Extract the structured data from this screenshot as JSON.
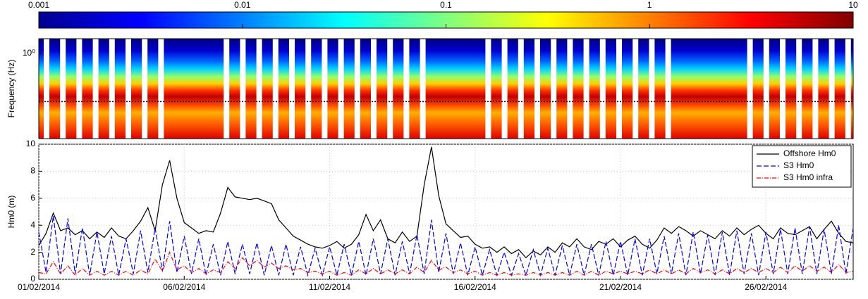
{
  "chart_data": [
    {
      "type": "colorbar",
      "colormap": "jet",
      "log": true,
      "xlim": [
        0.001,
        10
      ],
      "xticks": [
        0.001,
        0.01,
        0.1,
        1,
        10
      ]
    },
    {
      "type": "spectrogram",
      "ylabel": "Frequency (Hz)",
      "log": true,
      "ylim": [
        0.005,
        2.5
      ],
      "yticks": [
        {
          "value": 1,
          "label": "10⁰"
        }
      ],
      "threshold": 0.05,
      "xlim": [
        0,
        28
      ]
    },
    {
      "type": "line",
      "ylabel": "Hm0 (m)",
      "xlim": [
        0,
        28
      ],
      "ylim": [
        0,
        10
      ],
      "grid": true,
      "legend": "upper right",
      "xticks": [
        {
          "value": 0,
          "label": "01/02/2014"
        },
        {
          "value": 5,
          "label": "06/02/2014"
        },
        {
          "value": 10,
          "label": "11/02/2014"
        },
        {
          "value": 15,
          "label": "16/02/2014"
        },
        {
          "value": 20,
          "label": "21/02/2014"
        },
        {
          "value": 25,
          "label": "26/02/2014"
        }
      ],
      "yticks": [
        0,
        2,
        4,
        6,
        8,
        10
      ],
      "x": [
        0,
        0.25,
        0.5,
        0.75,
        1,
        1.25,
        1.5,
        1.75,
        2,
        2.25,
        2.5,
        2.75,
        3,
        3.25,
        3.5,
        3.75,
        4,
        4.25,
        4.5,
        4.75,
        5,
        5.25,
        5.5,
        5.75,
        6,
        6.25,
        6.5,
        6.75,
        7,
        7.25,
        7.5,
        7.75,
        8,
        8.25,
        8.5,
        8.75,
        9,
        9.25,
        9.5,
        9.75,
        10,
        10.25,
        10.5,
        10.75,
        11,
        11.25,
        11.5,
        11.75,
        12,
        12.25,
        12.5,
        12.75,
        13,
        13.25,
        13.5,
        13.75,
        14,
        14.25,
        14.5,
        14.75,
        15,
        15.25,
        15.5,
        15.75,
        16,
        16.25,
        16.5,
        16.75,
        17,
        17.25,
        17.5,
        17.75,
        18,
        18.25,
        18.5,
        18.75,
        19,
        19.25,
        19.5,
        19.75,
        20,
        20.25,
        20.5,
        20.75,
        21,
        21.25,
        21.5,
        21.75,
        22,
        22.25,
        22.5,
        22.75,
        23,
        23.25,
        23.5,
        23.75,
        24,
        24.25,
        24.5,
        24.75,
        25,
        25.25,
        25.5,
        25.75,
        26,
        26.25,
        26.5,
        26.75,
        27,
        27.25,
        27.5,
        27.75,
        28
      ],
      "series": [
        {
          "name": "Offshore Hm0",
          "color": "#000000",
          "linestyle": "solid",
          "values": [
            2.5,
            3.4,
            4.9,
            3.6,
            3.8,
            3.3,
            3.6,
            3.0,
            3.5,
            3.1,
            3.8,
            3.2,
            3.0,
            3.6,
            4.3,
            5.3,
            3.6,
            7.0,
            8.8,
            6.0,
            4.2,
            3.8,
            3.4,
            3.6,
            3.5,
            4.9,
            6.8,
            6.1,
            6.0,
            5.9,
            6.0,
            5.8,
            5.6,
            4.4,
            3.8,
            3.2,
            2.9,
            2.6,
            2.4,
            2.3,
            2.5,
            2.8,
            2.3,
            2.6,
            3.3,
            4.8,
            3.6,
            4.4,
            3.0,
            2.7,
            3.5,
            2.8,
            3.2,
            7.0,
            9.8,
            6.2,
            4.1,
            3.6,
            3.1,
            3.2,
            2.6,
            2.3,
            2.4,
            2.0,
            2.4,
            1.9,
            2.2,
            1.6,
            2.1,
            1.8,
            2.4,
            2.0,
            2.7,
            2.4,
            3.0,
            2.4,
            2.2,
            2.8,
            2.6,
            3.0,
            2.4,
            2.9,
            3.2,
            2.6,
            2.3,
            2.9,
            3.8,
            3.4,
            3.9,
            3.6,
            3.2,
            3.6,
            3.3,
            3.0,
            3.6,
            3.2,
            3.8,
            3.3,
            3.7,
            4.0,
            3.4,
            3.0,
            3.8,
            3.4,
            3.3,
            3.6,
            3.9,
            3.0,
            3.7,
            4.3,
            3.4,
            2.8,
            2.7
          ]
        },
        {
          "name": "S3 Hm0",
          "color": "#0000ff",
          "linestyle": "dashed",
          "values": [
            3.5,
            0.5,
            4.7,
            0.4,
            4.5,
            0.4,
            3.8,
            0.3,
            3.5,
            0.4,
            3.2,
            0.3,
            3.0,
            0.4,
            3.6,
            0.5,
            3.8,
            0.6,
            4.3,
            0.5,
            3.2,
            0.4,
            3.0,
            0.3,
            2.6,
            0.3,
            2.8,
            0.4,
            2.6,
            0.4,
            2.7,
            0.3,
            2.5,
            0.3,
            2.6,
            0.3,
            2.4,
            0.3,
            2.3,
            0.3,
            2.4,
            0.3,
            2.6,
            0.3,
            2.8,
            0.3,
            3.0,
            0.4,
            3.0,
            0.3,
            2.8,
            0.4,
            3.3,
            0.4,
            4.4,
            0.5,
            3.4,
            0.4,
            2.7,
            0.3,
            2.4,
            0.3,
            2.2,
            0.3,
            2.0,
            0.3,
            1.9,
            0.3,
            2.2,
            0.3,
            2.3,
            0.3,
            2.5,
            0.3,
            2.6,
            0.3,
            2.6,
            0.3,
            2.8,
            0.3,
            2.8,
            0.3,
            3.0,
            0.3,
            3.0,
            0.4,
            3.2,
            0.4,
            3.4,
            0.3,
            3.5,
            0.4,
            3.3,
            0.3,
            3.5,
            0.3,
            3.6,
            0.4,
            3.4,
            0.3,
            3.5,
            0.4,
            3.7,
            0.4,
            3.8,
            0.4,
            3.9,
            0.4,
            3.7,
            0.4,
            4.0,
            0.4,
            3.8
          ]
        },
        {
          "name": "S3 Hm0 infra",
          "color": "#ff0000",
          "linestyle": "dashdot",
          "values": [
            0.5,
            0.4,
            1.3,
            0.4,
            1.0,
            0.3,
            0.8,
            0.3,
            0.6,
            0.3,
            0.6,
            0.3,
            0.6,
            0.3,
            0.7,
            0.4,
            1.5,
            0.6,
            2.0,
            0.7,
            1.0,
            0.5,
            0.8,
            0.4,
            0.7,
            0.5,
            1.3,
            0.8,
            1.6,
            1.0,
            1.4,
            0.9,
            1.2,
            0.8,
            1.0,
            0.7,
            0.8,
            0.5,
            0.6,
            0.4,
            0.6,
            0.3,
            0.5,
            0.3,
            0.7,
            0.4,
            0.8,
            0.4,
            0.7,
            0.4,
            0.7,
            0.4,
            0.9,
            0.5,
            1.4,
            0.7,
            0.9,
            0.5,
            0.7,
            0.4,
            0.6,
            0.3,
            0.5,
            0.3,
            0.5,
            0.3,
            0.4,
            0.3,
            0.5,
            0.3,
            0.5,
            0.3,
            0.5,
            0.3,
            0.6,
            0.3,
            0.6,
            0.3,
            0.6,
            0.4,
            0.6,
            0.4,
            0.6,
            0.4,
            0.7,
            0.4,
            0.7,
            0.4,
            0.7,
            0.4,
            0.8,
            0.5,
            0.7,
            0.4,
            0.7,
            0.4,
            0.8,
            0.5,
            0.8,
            0.5,
            0.8,
            0.5,
            0.9,
            0.5,
            1.0,
            0.6,
            1.0,
            0.6,
            0.9,
            0.5,
            1.1,
            0.5,
            0.6
          ]
        }
      ]
    }
  ]
}
